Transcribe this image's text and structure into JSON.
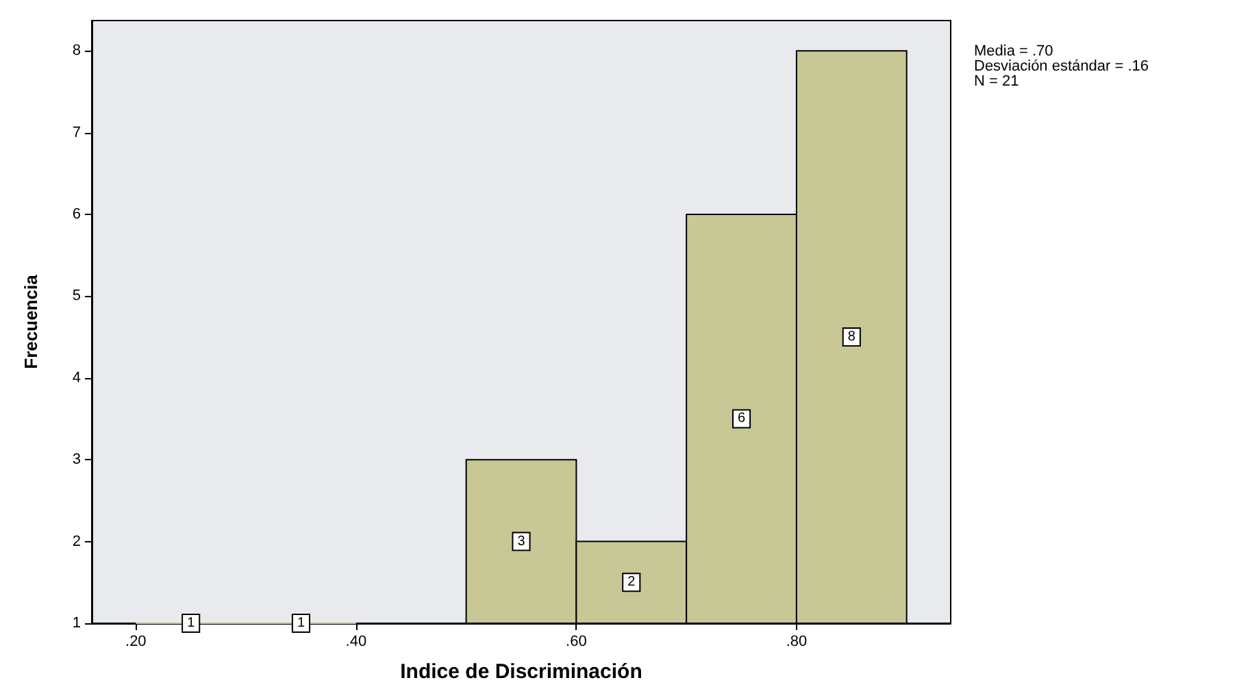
{
  "chart_data": {
    "type": "histogram",
    "xlabel": "Indice de Discriminación",
    "ylabel": "Frecuencia",
    "bins": [
      0.2,
      0.3,
      0.4,
      0.5,
      0.6,
      0.7,
      0.8,
      0.9
    ],
    "values": [
      1,
      1,
      null,
      3,
      2,
      6,
      8
    ],
    "color": "#c8c896",
    "data_labels": true,
    "grid": false,
    "xlim": [
      0.16,
      0.94
    ],
    "xticks": [
      {
        "value": 0.2,
        "label": ".20"
      },
      {
        "value": 0.4,
        "label": ".40"
      },
      {
        "value": 0.6,
        "label": ".60"
      },
      {
        "value": 0.8,
        "label": ".80"
      }
    ],
    "ylim": [
      1,
      8.37
    ],
    "yticks": [
      1,
      2,
      3,
      4,
      5,
      6,
      7,
      8
    ],
    "annotations": [
      "Media = .70",
      "Desviación estándar = .16",
      "N = 21"
    ]
  }
}
